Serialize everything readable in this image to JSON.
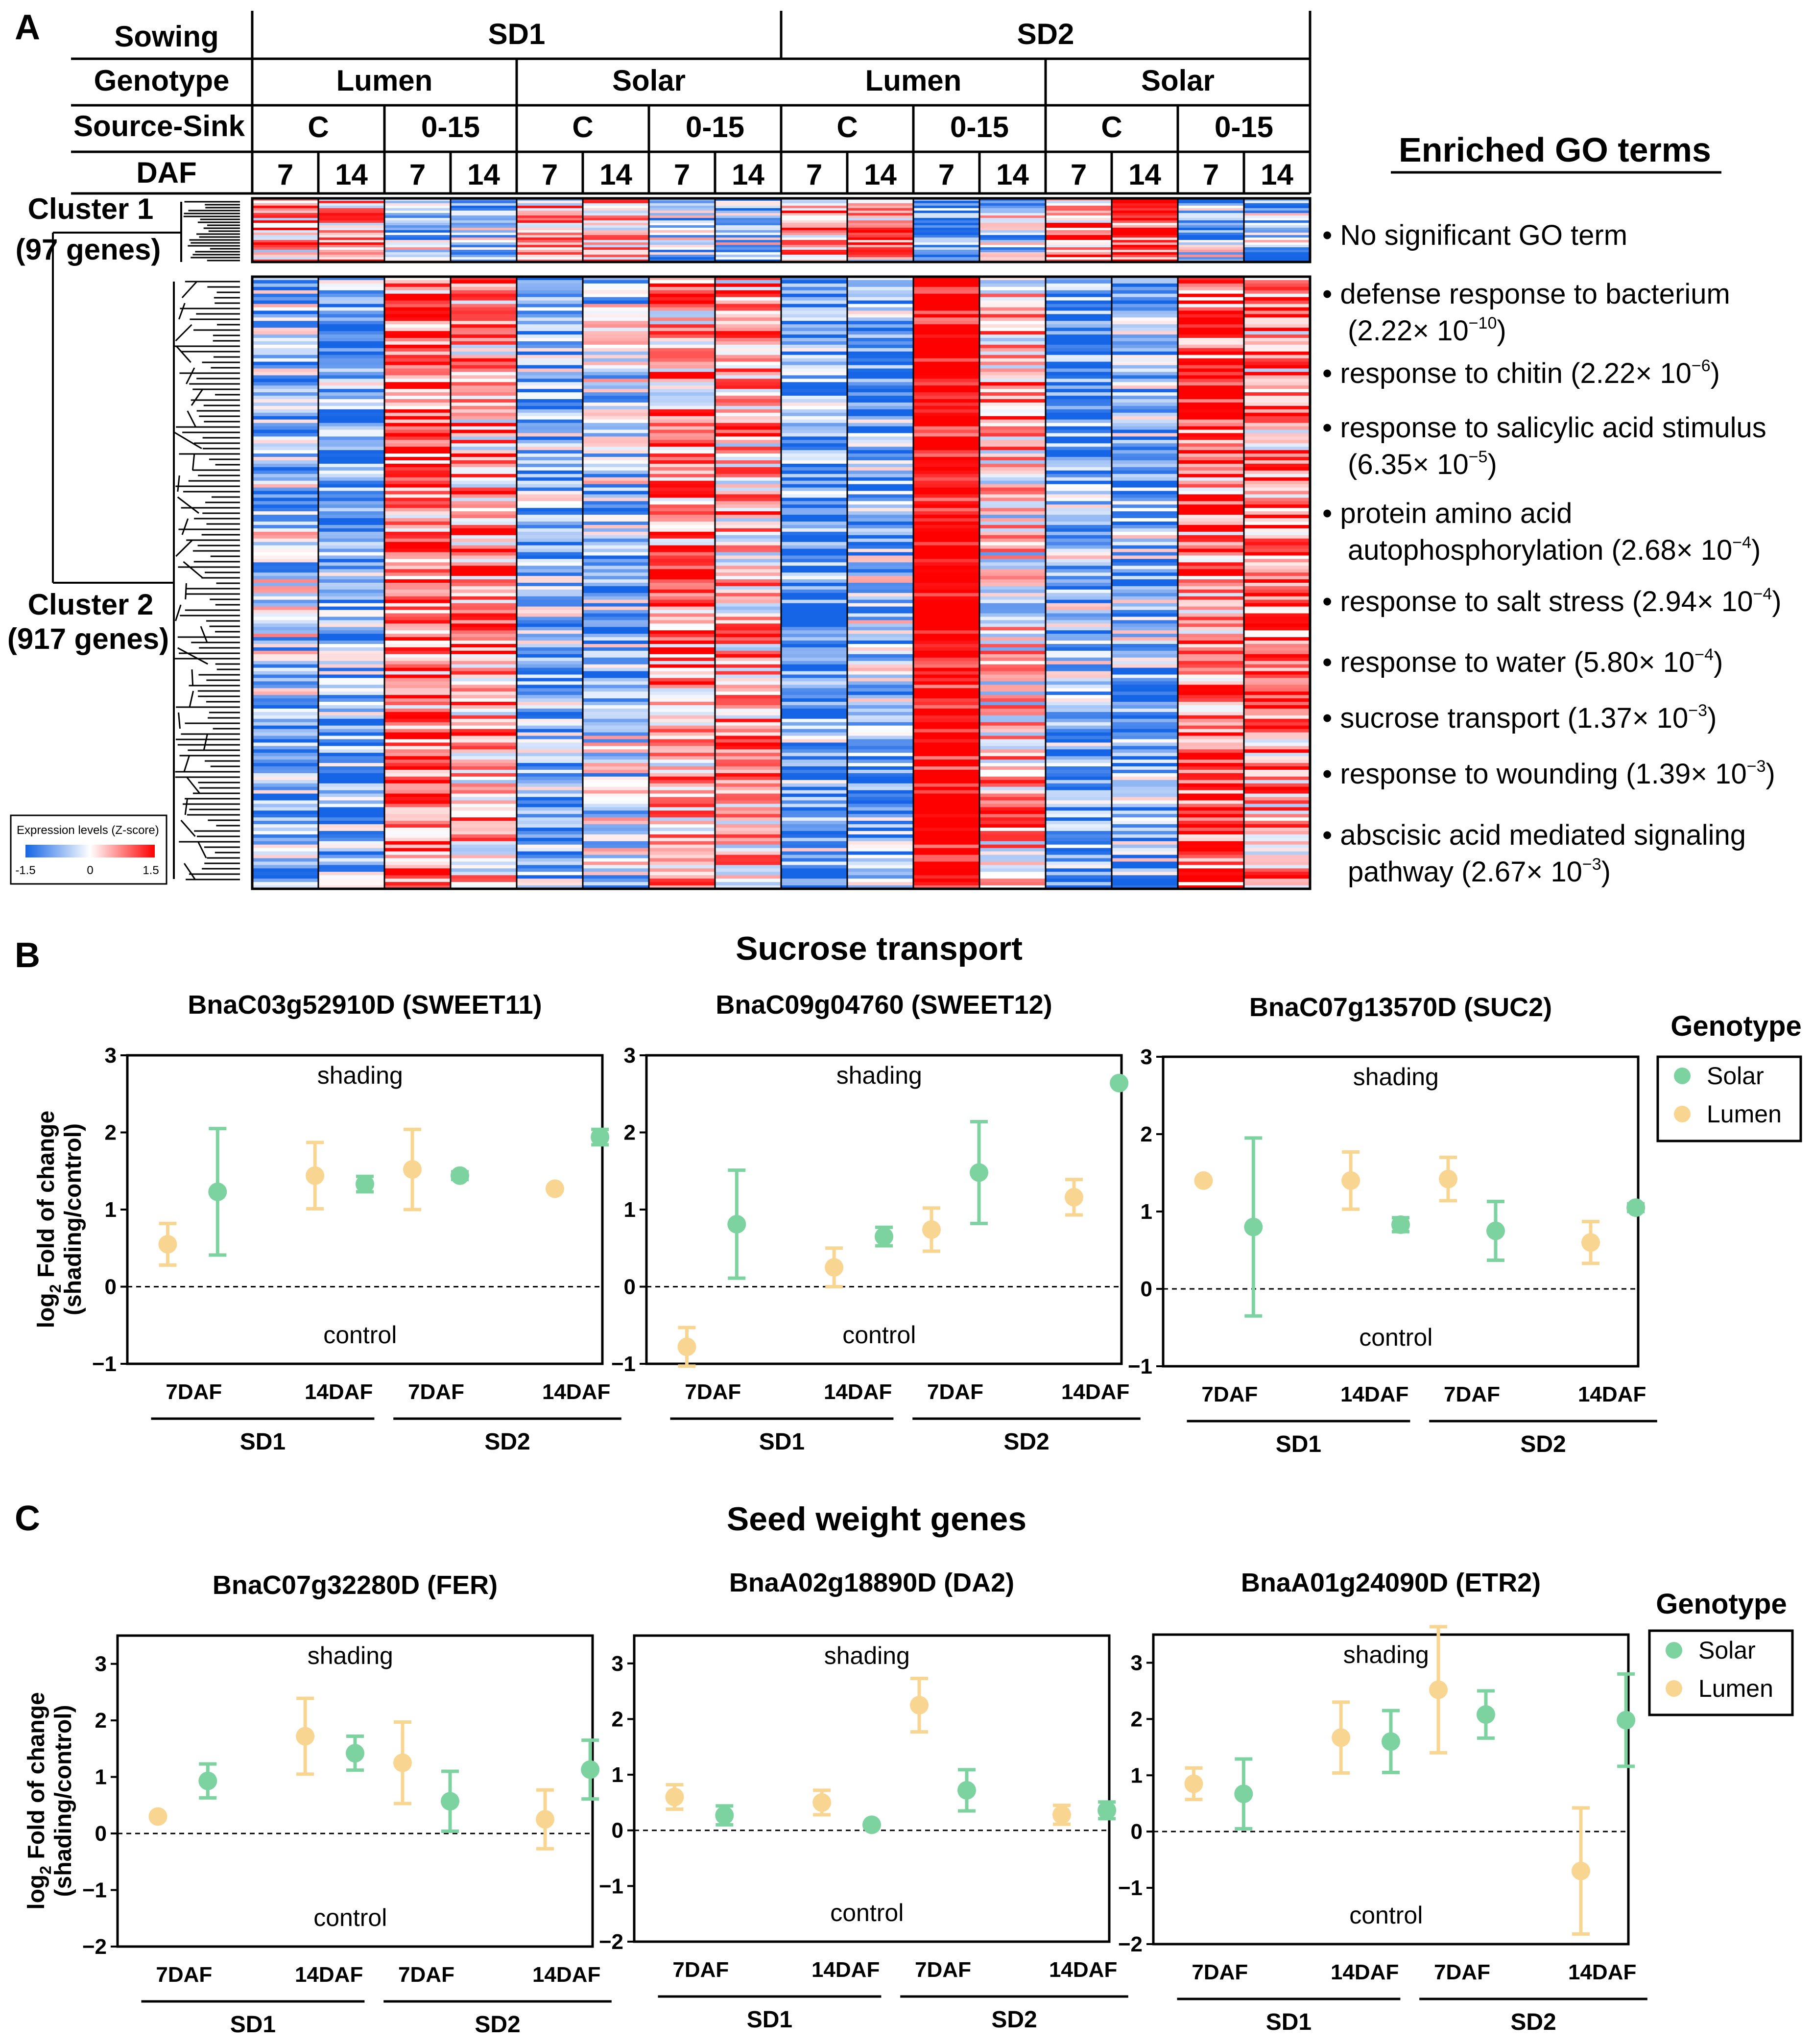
{
  "panel_labels": {
    "a": "A",
    "b": "B",
    "c": "C"
  },
  "colors": {
    "solar": "#7dd3a0",
    "lumen": "#f8d590",
    "heat_low": "#1565e6",
    "heat_mid": "#ffffff",
    "heat_high": "#ff0000"
  },
  "heatmap": {
    "row_labels": {
      "sowing": "Sowing",
      "genotype": "Genotype",
      "source_sink": "Source-Sink",
      "daf": "DAF"
    },
    "sowing": [
      "SD1",
      "SD2"
    ],
    "genotypes": [
      "Lumen",
      "Solar",
      "Lumen",
      "Solar"
    ],
    "source_sink": [
      "C",
      "0-15",
      "C",
      "0-15",
      "C",
      "0-15",
      "C",
      "0-15"
    ],
    "daf": [
      "7",
      "14",
      "7",
      "14",
      "7",
      "14",
      "7",
      "14",
      "7",
      "14",
      "7",
      "14",
      "7",
      "14",
      "7",
      "14"
    ],
    "cluster1": {
      "name": "Cluster 1",
      "genes": "(97 genes)"
    },
    "cluster2": {
      "name": "Cluster 2",
      "genes": "(917 genes)"
    },
    "colorbar": {
      "title": "Expression levels (Z-score)",
      "min": "-1.5",
      "mid": "0",
      "max": "1.5"
    }
  },
  "go": {
    "title": "Enriched GO terms",
    "cluster1_term": "No significant GO term",
    "terms": [
      {
        "l1": "defense response to bacterium",
        "l2": "(2.22× 10",
        "exp": "−10",
        "close": ")"
      },
      {
        "l1": "response to chitin (2.22× 10",
        "exp": "−6",
        "close": ")"
      },
      {
        "l1": "response to salicylic acid stimulus",
        "l2": "(6.35× 10",
        "exp": "−5",
        "close": ")"
      },
      {
        "l1": "protein amino acid",
        "l2": "autophosphorylation (2.68× 10",
        "exp": "−4",
        "close": ")"
      },
      {
        "l1": "response to salt stress (2.94× 10",
        "exp": "−4",
        "close": ")"
      },
      {
        "l1": "response to water (5.80× 10",
        "exp": "−4",
        "close": ")"
      },
      {
        "l1": "sucrose transport (1.37× 10",
        "exp": "−3",
        "close": ")"
      },
      {
        "l1": "response to wounding (1.39× 10",
        "exp": "−3",
        "close": ")"
      },
      {
        "l1": "abscisic acid mediated signaling",
        "l2": "pathway (2.67× 10",
        "exp": "−3",
        "close": ")"
      }
    ]
  },
  "section_b": {
    "title": "Sucrose transport"
  },
  "section_c": {
    "title": "Seed weight genes"
  },
  "legend": {
    "title": "Genotype",
    "solar": "Solar",
    "lumen": "Lumen"
  },
  "shared": {
    "ylabel_sub": "2",
    "ylabel_a": "log",
    "ylabel_b": " Fold of change",
    "ylabel_2": "(shading/control)",
    "shading": "shading",
    "control": "control",
    "ticks": [
      "7DAF",
      "14DAF",
      "7DAF",
      "14DAF"
    ],
    "groups": [
      "SD1",
      "SD2"
    ]
  },
  "chart_data": [
    {
      "type": "scatter",
      "title": "BnaC03g52910D  (SWEET11)",
      "ylim": [
        -1,
        3
      ],
      "yticks": [
        -1,
        0,
        1,
        2,
        3
      ],
      "points": [
        {
          "x": "SD1-7DAF",
          "genotype": "Lumen",
          "y": 0.55,
          "err": 0.27
        },
        {
          "x": "SD1-7DAF",
          "genotype": "Solar",
          "y": 1.23,
          "err": 0.82
        },
        {
          "x": "SD1-14DAF",
          "genotype": "Lumen",
          "y": 1.44,
          "err": 0.43
        },
        {
          "x": "SD1-14DAF",
          "genotype": "Solar",
          "y": 1.33,
          "err": 0.1
        },
        {
          "x": "SD2-7DAF",
          "genotype": "Lumen",
          "y": 1.52,
          "err": 0.52
        },
        {
          "x": "SD2-7DAF",
          "genotype": "Solar",
          "y": 1.44,
          "err": 0.05
        },
        {
          "x": "SD2-14DAF",
          "genotype": "Lumen",
          "y": 1.27,
          "err": 0.02
        },
        {
          "x": "SD2-14DAF",
          "genotype": "Solar",
          "y": 1.94,
          "err": 0.1
        }
      ]
    },
    {
      "type": "scatter",
      "title": "BnaC09g04760 (SWEET12)",
      "ylim": [
        -1,
        3
      ],
      "yticks": [
        -1,
        0,
        1,
        2,
        3
      ],
      "points": [
        {
          "x": "SD1-7DAF",
          "genotype": "Lumen",
          "y": -0.78,
          "err": 0.25
        },
        {
          "x": "SD1-7DAF",
          "genotype": "Solar",
          "y": 0.81,
          "err": 0.7
        },
        {
          "x": "SD1-14DAF",
          "genotype": "Lumen",
          "y": 0.25,
          "err": 0.25
        },
        {
          "x": "SD1-14DAF",
          "genotype": "Solar",
          "y": 0.65,
          "err": 0.12
        },
        {
          "x": "SD2-7DAF",
          "genotype": "Lumen",
          "y": 0.74,
          "err": 0.28
        },
        {
          "x": "SD2-7DAF",
          "genotype": "Solar",
          "y": 1.48,
          "err": 0.66
        },
        {
          "x": "SD2-14DAF",
          "genotype": "Lumen",
          "y": 1.16,
          "err": 0.23
        },
        {
          "x": "SD2-14DAF",
          "genotype": "Solar",
          "y": 2.64,
          "err": 0.02
        }
      ]
    },
    {
      "type": "scatter",
      "title": "BnaC07g13570D (SUC2)",
      "ylim": [
        -1,
        3
      ],
      "yticks": [
        -1,
        0,
        1,
        2,
        3
      ],
      "points": [
        {
          "x": "SD1-7DAF",
          "genotype": "Lumen",
          "y": 1.4,
          "err": 0.02
        },
        {
          "x": "SD1-7DAF",
          "genotype": "Solar",
          "y": 0.8,
          "err": 1.15
        },
        {
          "x": "SD1-14DAF",
          "genotype": "Lumen",
          "y": 1.4,
          "err": 0.37
        },
        {
          "x": "SD1-14DAF",
          "genotype": "Solar",
          "y": 0.83,
          "err": 0.09
        },
        {
          "x": "SD2-7DAF",
          "genotype": "Lumen",
          "y": 1.42,
          "err": 0.28
        },
        {
          "x": "SD2-7DAF",
          "genotype": "Solar",
          "y": 0.75,
          "err": 0.38
        },
        {
          "x": "SD2-14DAF",
          "genotype": "Lumen",
          "y": 0.6,
          "err": 0.27
        },
        {
          "x": "SD2-14DAF",
          "genotype": "Solar",
          "y": 1.05,
          "err": 0.05
        }
      ]
    },
    {
      "type": "scatter",
      "title": "BnaC07g32280D (FER)",
      "ylim": [
        -2,
        3.5
      ],
      "yticks": [
        -2,
        -1,
        0,
        1,
        2,
        3
      ],
      "points": [
        {
          "x": "SD1-7DAF",
          "genotype": "Lumen",
          "y": 0.3,
          "err": 0.02
        },
        {
          "x": "SD1-7DAF",
          "genotype": "Solar",
          "y": 0.93,
          "err": 0.3
        },
        {
          "x": "SD1-14DAF",
          "genotype": "Lumen",
          "y": 1.72,
          "err": 0.67
        },
        {
          "x": "SD1-14DAF",
          "genotype": "Solar",
          "y": 1.42,
          "err": 0.3
        },
        {
          "x": "SD2-7DAF",
          "genotype": "Lumen",
          "y": 1.25,
          "err": 0.72
        },
        {
          "x": "SD2-7DAF",
          "genotype": "Solar",
          "y": 0.57,
          "err": 0.53
        },
        {
          "x": "SD2-14DAF",
          "genotype": "Lumen",
          "y": 0.25,
          "err": 0.52
        },
        {
          "x": "SD2-14DAF",
          "genotype": "Solar",
          "y": 1.13,
          "err": 0.52
        }
      ]
    },
    {
      "type": "scatter",
      "title": "BnaA02g18890D (DA2)",
      "ylim": [
        -2,
        3.5
      ],
      "yticks": [
        -2,
        -1,
        0,
        1,
        2,
        3
      ],
      "points": [
        {
          "x": "SD1-7DAF",
          "genotype": "Lumen",
          "y": 0.6,
          "err": 0.22
        },
        {
          "x": "SD1-7DAF",
          "genotype": "Solar",
          "y": 0.27,
          "err": 0.17
        },
        {
          "x": "SD1-14DAF",
          "genotype": "Lumen",
          "y": 0.5,
          "err": 0.22
        },
        {
          "x": "SD1-14DAF",
          "genotype": "Solar",
          "y": 0.1,
          "err": 0.02
        },
        {
          "x": "SD2-7DAF",
          "genotype": "Lumen",
          "y": 2.25,
          "err": 0.48
        },
        {
          "x": "SD2-7DAF",
          "genotype": "Solar",
          "y": 0.72,
          "err": 0.37
        },
        {
          "x": "SD2-14DAF",
          "genotype": "Lumen",
          "y": 0.28,
          "err": 0.17
        },
        {
          "x": "SD2-14DAF",
          "genotype": "Solar",
          "y": 0.36,
          "err": 0.15
        }
      ]
    },
    {
      "type": "scatter",
      "title": "BnaA01g24090D (ETR2)",
      "ylim": [
        -2,
        3.5
      ],
      "yticks": [
        -2,
        -1,
        0,
        1,
        2,
        3
      ],
      "points": [
        {
          "x": "SD1-7DAF",
          "genotype": "Lumen",
          "y": 0.85,
          "err": 0.28
        },
        {
          "x": "SD1-7DAF",
          "genotype": "Solar",
          "y": 0.67,
          "err": 0.62
        },
        {
          "x": "SD1-14DAF",
          "genotype": "Lumen",
          "y": 1.67,
          "err": 0.63
        },
        {
          "x": "SD1-14DAF",
          "genotype": "Solar",
          "y": 1.6,
          "err": 0.55
        },
        {
          "x": "SD2-7DAF",
          "genotype": "Lumen",
          "y": 2.52,
          "err": 1.12
        },
        {
          "x": "SD2-7DAF",
          "genotype": "Solar",
          "y": 2.08,
          "err": 0.42
        },
        {
          "x": "SD2-14DAF",
          "genotype": "Lumen",
          "y": -0.7,
          "err": 1.12
        },
        {
          "x": "SD2-14DAF",
          "genotype": "Solar",
          "y": 1.98,
          "err": 0.82
        }
      ]
    }
  ]
}
